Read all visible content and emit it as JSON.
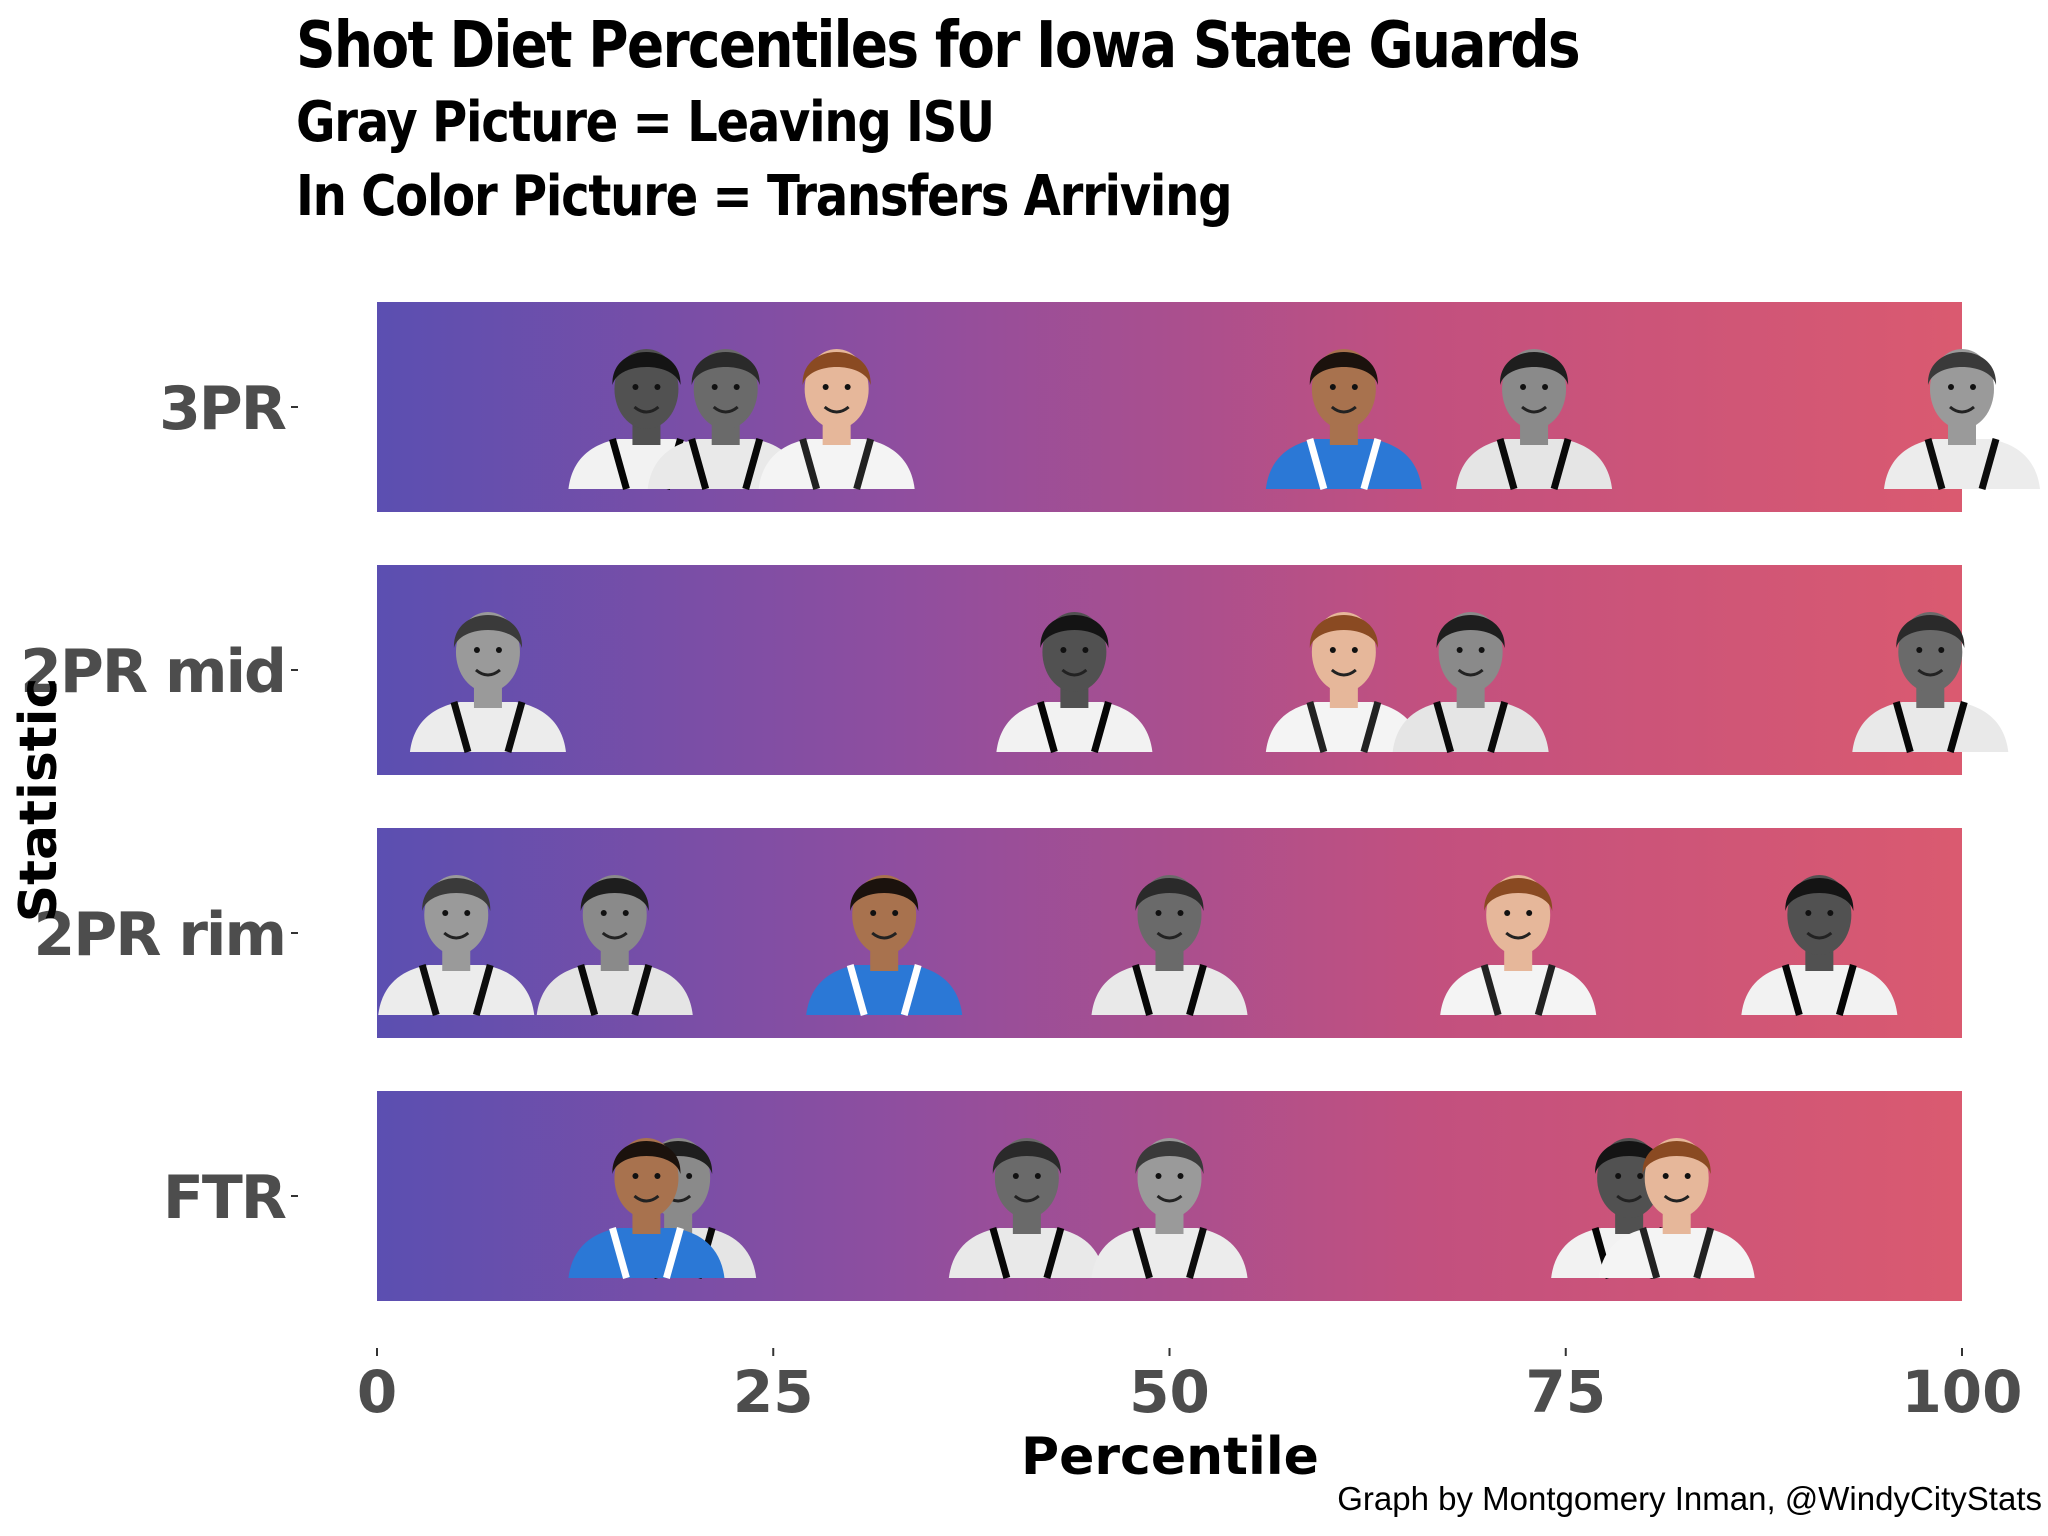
{
  "chart_data": {
    "type": "scatter",
    "title": "Shot Diet Percentiles for Iowa State Guards",
    "subtitle_lines": [
      "Gray Picture = Leaving ISU",
      "In Color Picture = Transfers Arriving"
    ],
    "xlabel": "Percentile",
    "ylabel": "Statistic",
    "xlim": [
      0,
      100
    ],
    "x_ticks": [
      "0",
      "25",
      "50",
      "75",
      "100"
    ],
    "x_tick_values": [
      0,
      25,
      50,
      75,
      100
    ],
    "categories": [
      "3PR",
      "2PR mid",
      "2PR rim",
      "FTR"
    ],
    "background_gradient": [
      "#5B4FB1",
      "#8F4E9F",
      "#C2507F",
      "#DA5A70"
    ],
    "legend": "none",
    "grid": false,
    "points": [
      {
        "category": "3PR",
        "x": 17,
        "player": "A",
        "status": "gray"
      },
      {
        "category": "3PR",
        "x": 22,
        "player": "B",
        "status": "gray"
      },
      {
        "category": "3PR",
        "x": 29,
        "player": "C",
        "status": "color"
      },
      {
        "category": "3PR",
        "x": 61,
        "player": "D",
        "status": "color"
      },
      {
        "category": "3PR",
        "x": 73,
        "player": "E",
        "status": "gray"
      },
      {
        "category": "3PR",
        "x": 100,
        "player": "F",
        "status": "gray"
      },
      {
        "category": "2PR mid",
        "x": 7,
        "player": "F",
        "status": "gray"
      },
      {
        "category": "2PR mid",
        "x": 44,
        "player": "A",
        "status": "gray"
      },
      {
        "category": "2PR mid",
        "x": 61,
        "player": "C",
        "status": "color"
      },
      {
        "category": "2PR mid",
        "x": 69,
        "player": "E",
        "status": "gray"
      },
      {
        "category": "2PR mid",
        "x": 98,
        "player": "B",
        "status": "gray"
      },
      {
        "category": "2PR rim",
        "x": 5,
        "player": "F",
        "status": "gray"
      },
      {
        "category": "2PR rim",
        "x": 15,
        "player": "E",
        "status": "gray"
      },
      {
        "category": "2PR rim",
        "x": 32,
        "player": "D",
        "status": "color"
      },
      {
        "category": "2PR rim",
        "x": 50,
        "player": "B",
        "status": "gray"
      },
      {
        "category": "2PR rim",
        "x": 72,
        "player": "C",
        "status": "color"
      },
      {
        "category": "2PR rim",
        "x": 91,
        "player": "A",
        "status": "gray"
      },
      {
        "category": "FTR",
        "x": 19,
        "player": "E",
        "status": "gray"
      },
      {
        "category": "FTR",
        "x": 17,
        "player": "D",
        "status": "color"
      },
      {
        "category": "FTR",
        "x": 41,
        "player": "B",
        "status": "gray"
      },
      {
        "category": "FTR",
        "x": 50,
        "player": "F",
        "status": "gray"
      },
      {
        "category": "FTR",
        "x": 79,
        "player": "A",
        "status": "gray"
      },
      {
        "category": "FTR",
        "x": 82,
        "player": "C",
        "status": "color"
      }
    ]
  },
  "footer": {
    "credit": "Graph by Montgomery Inman, @WindyCityStats"
  }
}
